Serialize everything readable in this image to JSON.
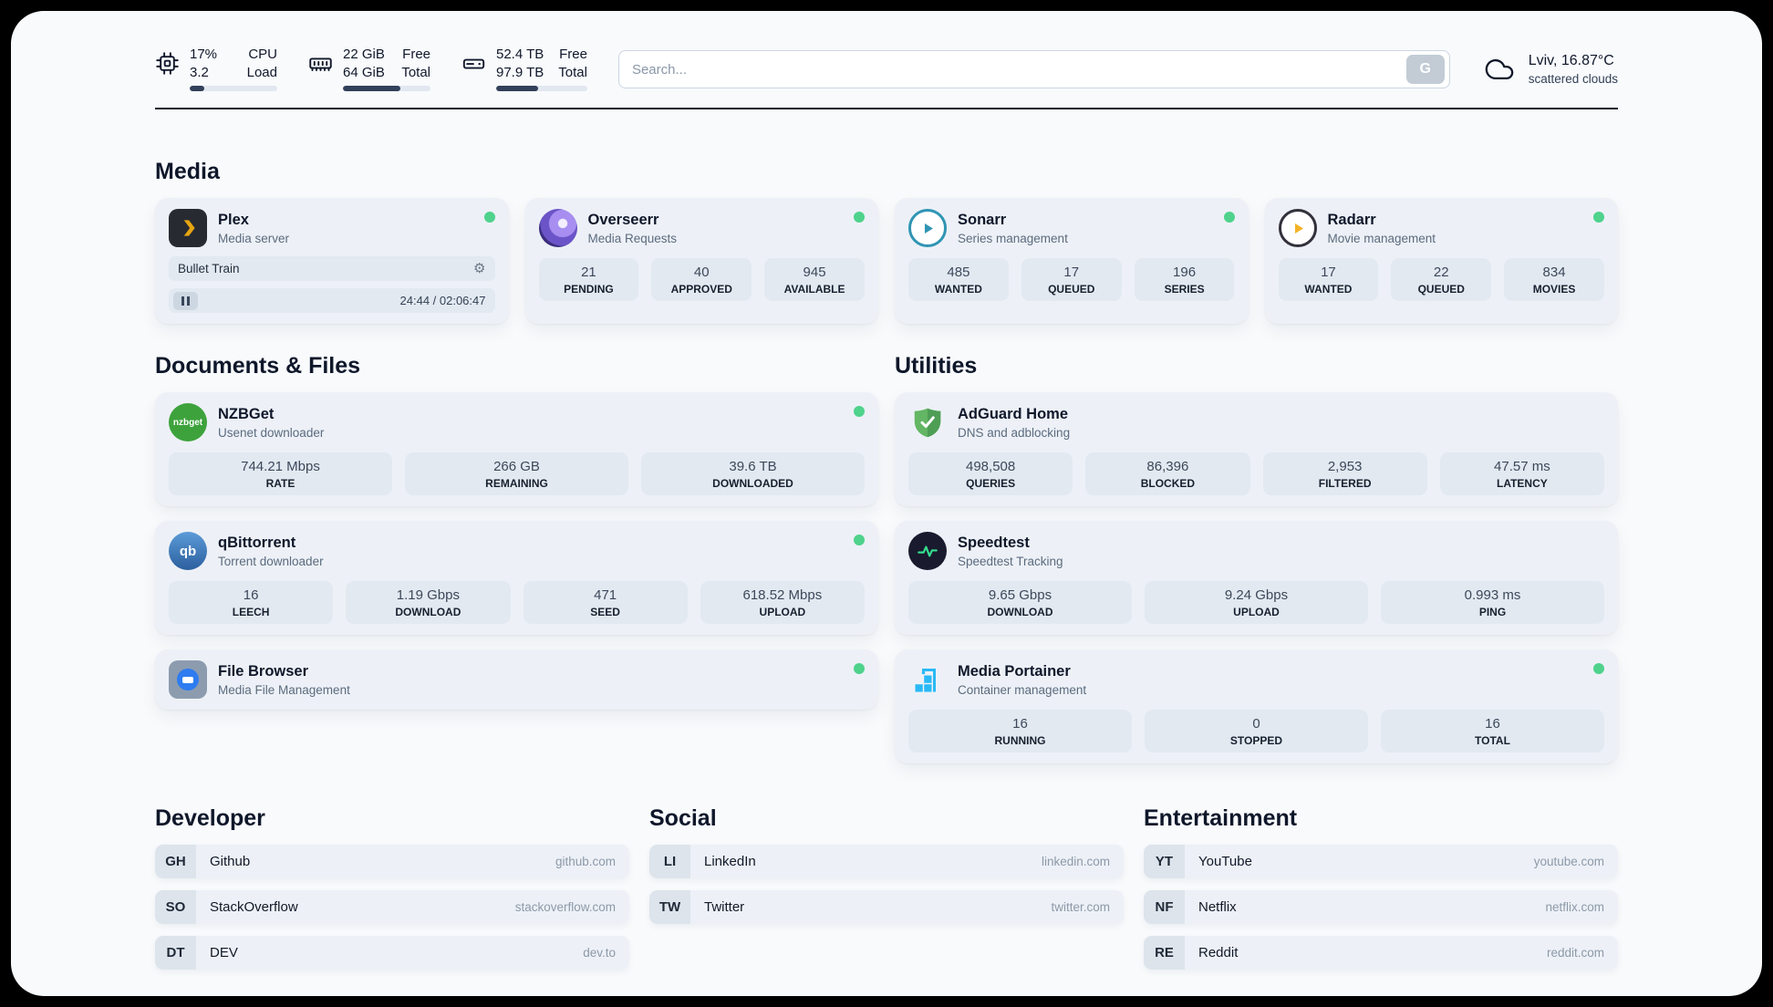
{
  "topbar": {
    "cpu": {
      "percent": "17%",
      "value": "3.2",
      "label_top": "CPU",
      "label_bottom": "Load",
      "bar_percent": 17
    },
    "memory": {
      "free": "22 GiB",
      "total": "64 GiB",
      "label_top": "Free",
      "label_bottom": "Total",
      "bar_percent": 66
    },
    "disk": {
      "free": "52.4 TB",
      "total": "97.9 TB",
      "label_top": "Free",
      "label_bottom": "Total",
      "bar_percent": 46
    },
    "search": {
      "placeholder": "Search...",
      "button_label": "G",
      "value": ""
    },
    "weather": {
      "location": "Lviv, 16.87°C",
      "condition": "scattered clouds"
    }
  },
  "sections": {
    "media": {
      "title": "Media"
    },
    "documents": {
      "title": "Documents & Files"
    },
    "utilities": {
      "title": "Utilities"
    },
    "developer": {
      "title": "Developer"
    },
    "social": {
      "title": "Social"
    },
    "entertainment": {
      "title": "Entertainment"
    }
  },
  "media": {
    "apps": [
      {
        "name": "Plex",
        "subtitle": "Media server",
        "online": true,
        "player": {
          "title": "Bullet Train",
          "time": "24:44 / 02:06:47"
        }
      },
      {
        "name": "Overseerr",
        "subtitle": "Media Requests",
        "online": true,
        "stats": [
          {
            "value": "21",
            "label": "PENDING"
          },
          {
            "value": "40",
            "label": "APPROVED"
          },
          {
            "value": "945",
            "label": "AVAILABLE"
          }
        ]
      },
      {
        "name": "Sonarr",
        "subtitle": "Series management",
        "online": true,
        "stats": [
          {
            "value": "485",
            "label": "WANTED"
          },
          {
            "value": "17",
            "label": "QUEUED"
          },
          {
            "value": "196",
            "label": "SERIES"
          }
        ]
      },
      {
        "name": "Radarr",
        "subtitle": "Movie management",
        "online": true,
        "stats": [
          {
            "value": "17",
            "label": "WANTED"
          },
          {
            "value": "22",
            "label": "QUEUED"
          },
          {
            "value": "834",
            "label": "MOVIES"
          }
        ]
      }
    ]
  },
  "documents": {
    "apps": [
      {
        "name": "NZBGet",
        "subtitle": "Usenet downloader",
        "online": true,
        "stats": [
          {
            "value": "744.21 Mbps",
            "label": "RATE"
          },
          {
            "value": "266 GB",
            "label": "REMAINING"
          },
          {
            "value": "39.6 TB",
            "label": "DOWNLOADED"
          }
        ]
      },
      {
        "name": "qBittorrent",
        "subtitle": "Torrent downloader",
        "online": true,
        "stats": [
          {
            "value": "16",
            "label": "LEECH"
          },
          {
            "value": "1.19 Gbps",
            "label": "DOWNLOAD"
          },
          {
            "value": "471",
            "label": "SEED"
          },
          {
            "value": "618.52 Mbps",
            "label": "UPLOAD"
          }
        ]
      },
      {
        "name": "File Browser",
        "subtitle": "Media File Management",
        "online": true
      }
    ]
  },
  "utilities": {
    "apps": [
      {
        "name": "AdGuard Home",
        "subtitle": "DNS and adblocking",
        "online": false,
        "stats": [
          {
            "value": "498,508",
            "label": "QUERIES"
          },
          {
            "value": "86,396",
            "label": "BLOCKED"
          },
          {
            "value": "2,953",
            "label": "FILTERED"
          },
          {
            "value": "47.57 ms",
            "label": "LATENCY"
          }
        ]
      },
      {
        "name": "Speedtest",
        "subtitle": "Speedtest Tracking",
        "online": false,
        "stats": [
          {
            "value": "9.65 Gbps",
            "label": "DOWNLOAD"
          },
          {
            "value": "9.24 Gbps",
            "label": "UPLOAD"
          },
          {
            "value": "0.993 ms",
            "label": "PING"
          }
        ]
      },
      {
        "name": "Media Portainer",
        "subtitle": "Container management",
        "online": true,
        "stats": [
          {
            "value": "16",
            "label": "RUNNING"
          },
          {
            "value": "0",
            "label": "STOPPED"
          },
          {
            "value": "16",
            "label": "TOTAL"
          }
        ]
      }
    ]
  },
  "bookmarks": {
    "developer": [
      {
        "abbr": "GH",
        "name": "Github",
        "url": "github.com"
      },
      {
        "abbr": "SO",
        "name": "StackOverflow",
        "url": "stackoverflow.com"
      },
      {
        "abbr": "DT",
        "name": "DEV",
        "url": "dev.to"
      }
    ],
    "social": [
      {
        "abbr": "LI",
        "name": "LinkedIn",
        "url": "linkedin.com"
      },
      {
        "abbr": "TW",
        "name": "Twitter",
        "url": "twitter.com"
      }
    ],
    "entertainment": [
      {
        "abbr": "YT",
        "name": "YouTube",
        "url": "youtube.com"
      },
      {
        "abbr": "NF",
        "name": "Netflix",
        "url": "netflix.com"
      },
      {
        "abbr": "RE",
        "name": "Reddit",
        "url": "reddit.com"
      }
    ]
  },
  "icons": {
    "nzbget_text": "nzbget",
    "qbittorrent_text": "qb"
  },
  "colors": {
    "status_online": "#4fd28c",
    "page_background": "#f8fafc",
    "card_background": "#edf1f7"
  }
}
